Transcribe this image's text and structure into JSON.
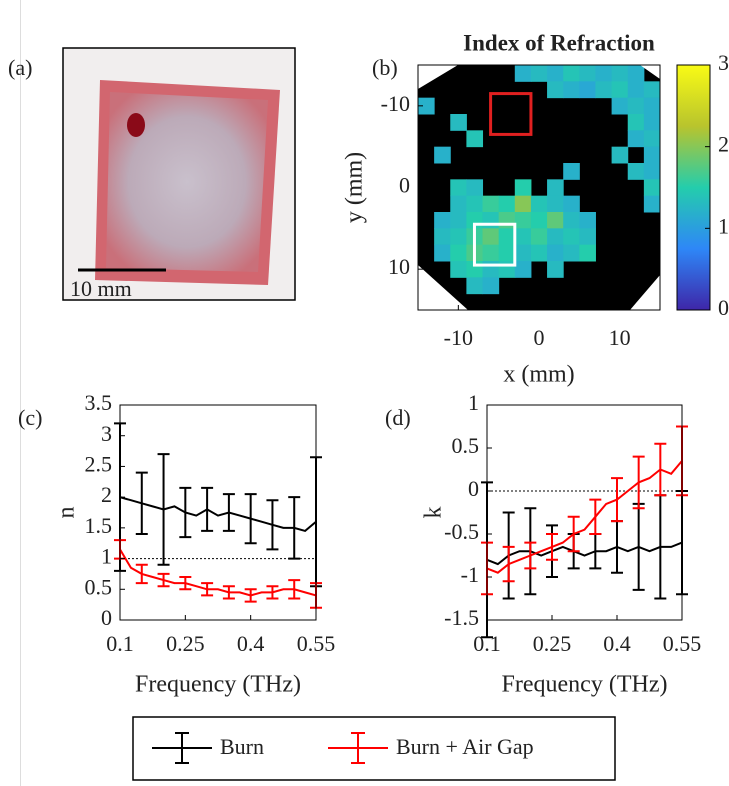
{
  "panel_labels": [
    "(a)",
    "(b)",
    "(c)",
    "(d)"
  ],
  "photo": {
    "scale_bar_label": "10 mm"
  },
  "chart_data": [
    {
      "type": "heatmap",
      "title": "Index of Refraction",
      "xlabel": "x (mm)",
      "ylabel": "y (mm)",
      "xlim": [
        -15,
        15
      ],
      "xticks": [
        -10,
        0,
        10
      ],
      "ylim": [
        -15,
        15
      ],
      "yticks": [
        -10,
        0,
        10
      ],
      "y_inverted": true,
      "clim": [
        0,
        3
      ],
      "cticks": [
        0,
        1,
        2,
        3
      ],
      "colormap": [
        "#3e26a8",
        "#2e87f7",
        "#24cdac",
        "#b8c42d",
        "#f9fb15"
      ],
      "matrix": [
        [
          null,
          null,
          null,
          null,
          null,
          null,
          1.2,
          1.3,
          1.2,
          1.4,
          1.3,
          1.2,
          1.3,
          1.2,
          null
        ],
        [
          null,
          null,
          null,
          null,
          null,
          null,
          null,
          null,
          1.3,
          1.2,
          1.1,
          1.3,
          1.4,
          1.2,
          1.3
        ],
        [
          1.2,
          null,
          null,
          null,
          null,
          null,
          null,
          null,
          null,
          null,
          null,
          null,
          1.2,
          1.3,
          1.2
        ],
        [
          null,
          null,
          1.3,
          null,
          null,
          null,
          null,
          null,
          null,
          null,
          null,
          null,
          null,
          1.4,
          1.2
        ],
        [
          null,
          null,
          null,
          1.4,
          null,
          null,
          null,
          null,
          null,
          null,
          null,
          null,
          null,
          1.2,
          1.3
        ],
        [
          null,
          1.2,
          null,
          null,
          null,
          null,
          null,
          null,
          null,
          null,
          null,
          null,
          1.3,
          null,
          1.2
        ],
        [
          null,
          null,
          null,
          null,
          null,
          null,
          null,
          null,
          null,
          1.2,
          null,
          null,
          null,
          1.3,
          1.2
        ],
        [
          null,
          null,
          1.4,
          1.3,
          null,
          null,
          1.5,
          null,
          1.3,
          null,
          null,
          null,
          null,
          null,
          1.4
        ],
        [
          null,
          null,
          1.3,
          1.4,
          1.6,
          1.5,
          2.0,
          1.4,
          1.3,
          1.2,
          null,
          null,
          null,
          null,
          1.2
        ],
        [
          null,
          1.2,
          1.3,
          1.5,
          1.4,
          1.7,
          1.6,
          1.5,
          1.8,
          1.3,
          1.2,
          null,
          null,
          null,
          null
        ],
        [
          null,
          1.3,
          1.4,
          1.6,
          1.8,
          1.5,
          1.4,
          1.6,
          1.3,
          1.4,
          1.3,
          null,
          null,
          null,
          null
        ],
        [
          null,
          1.2,
          1.5,
          1.7,
          1.6,
          1.5,
          1.3,
          1.4,
          1.2,
          1.3,
          1.5,
          null,
          null,
          null,
          null
        ],
        [
          null,
          null,
          1.4,
          1.5,
          1.3,
          1.4,
          1.2,
          null,
          1.3,
          null,
          null,
          null,
          null,
          null,
          null
        ],
        [
          null,
          null,
          null,
          1.3,
          1.2,
          null,
          null,
          null,
          null,
          null,
          null,
          null,
          null,
          null,
          null
        ],
        [
          null,
          null,
          null,
          null,
          null,
          null,
          null,
          null,
          null,
          null,
          null,
          null,
          null,
          null,
          null
        ]
      ],
      "regions": [
        {
          "color": "#e02020",
          "x": [
            -6,
            -1
          ],
          "y": [
            -11.5,
            -6.5
          ]
        },
        {
          "color": "#ffffff",
          "x": [
            -8,
            -3
          ],
          "y": [
            4.5,
            9.5
          ]
        }
      ]
    },
    {
      "type": "errorline",
      "xlabel": "Frequency (THz)",
      "ylabel": "n",
      "xlim": [
        0.1,
        0.55
      ],
      "xticks": [
        0.1,
        0.25,
        0.4,
        0.55
      ],
      "ylim": [
        0,
        3.5
      ],
      "yticks": [
        0,
        0.5,
        1,
        1.5,
        2,
        2.5,
        3,
        3.5
      ],
      "reference_line": 1,
      "x": [
        0.1,
        0.125,
        0.15,
        0.175,
        0.2,
        0.225,
        0.25,
        0.275,
        0.3,
        0.325,
        0.35,
        0.375,
        0.4,
        0.425,
        0.45,
        0.475,
        0.5,
        0.525,
        0.55
      ],
      "series": [
        {
          "name": "Burn",
          "color": "#000000",
          "values": [
            2.0,
            1.95,
            1.9,
            1.85,
            1.8,
            1.85,
            1.75,
            1.7,
            1.8,
            1.7,
            1.75,
            1.7,
            1.65,
            1.6,
            1.55,
            1.5,
            1.5,
            1.45,
            1.6
          ],
          "errors": [
            1.2,
            null,
            0.5,
            null,
            0.9,
            null,
            0.4,
            null,
            0.35,
            null,
            0.3,
            null,
            0.4,
            null,
            0.4,
            null,
            0.5,
            null,
            1.05
          ]
        },
        {
          "name": "Burn + Air Gap",
          "color": "#ff0000",
          "values": [
            1.15,
            0.85,
            0.75,
            0.7,
            0.65,
            0.6,
            0.6,
            0.55,
            0.5,
            0.5,
            0.45,
            0.45,
            0.4,
            0.45,
            0.45,
            0.5,
            0.5,
            0.45,
            0.4
          ],
          "errors": [
            0.15,
            null,
            0.15,
            null,
            0.1,
            null,
            0.1,
            null,
            0.1,
            null,
            0.1,
            null,
            0.1,
            null,
            0.1,
            null,
            0.15,
            null,
            0.2
          ]
        }
      ]
    },
    {
      "type": "errorline",
      "xlabel": "Frequency (THz)",
      "ylabel": "k",
      "xlim": [
        0.1,
        0.55
      ],
      "xticks": [
        0.1,
        0.25,
        0.4,
        0.55
      ],
      "ylim": [
        -1.5,
        1
      ],
      "yticks": [
        -1.5,
        -1,
        -0.5,
        0,
        0.5,
        1
      ],
      "reference_line": 0,
      "x": [
        0.1,
        0.125,
        0.15,
        0.175,
        0.2,
        0.225,
        0.25,
        0.275,
        0.3,
        0.325,
        0.35,
        0.375,
        0.4,
        0.425,
        0.45,
        0.475,
        0.5,
        0.525,
        0.55
      ],
      "series": [
        {
          "color": "#000000",
          "values": [
            -0.8,
            -0.85,
            -0.75,
            -0.7,
            -0.7,
            -0.75,
            -0.7,
            -0.65,
            -0.7,
            -0.75,
            -0.7,
            -0.7,
            -0.65,
            -0.7,
            -0.65,
            -0.7,
            -0.65,
            -0.65,
            -0.6
          ],
          "errors": [
            0.9,
            null,
            0.5,
            null,
            0.5,
            null,
            0.3,
            null,
            0.2,
            null,
            0.2,
            null,
            0.3,
            null,
            0.5,
            null,
            0.6,
            null,
            0.6
          ]
        },
        {
          "color": "#ff0000",
          "values": [
            -0.9,
            -0.95,
            -0.85,
            -0.8,
            -0.75,
            -0.7,
            -0.65,
            -0.6,
            -0.5,
            -0.45,
            -0.3,
            -0.15,
            -0.1,
            0.0,
            0.1,
            0.15,
            0.25,
            0.2,
            0.35
          ],
          "errors": [
            0.3,
            null,
            0.2,
            null,
            0.15,
            null,
            0.15,
            null,
            0.2,
            null,
            0.2,
            null,
            0.25,
            null,
            0.3,
            null,
            0.3,
            null,
            0.4
          ]
        }
      ]
    }
  ]
}
